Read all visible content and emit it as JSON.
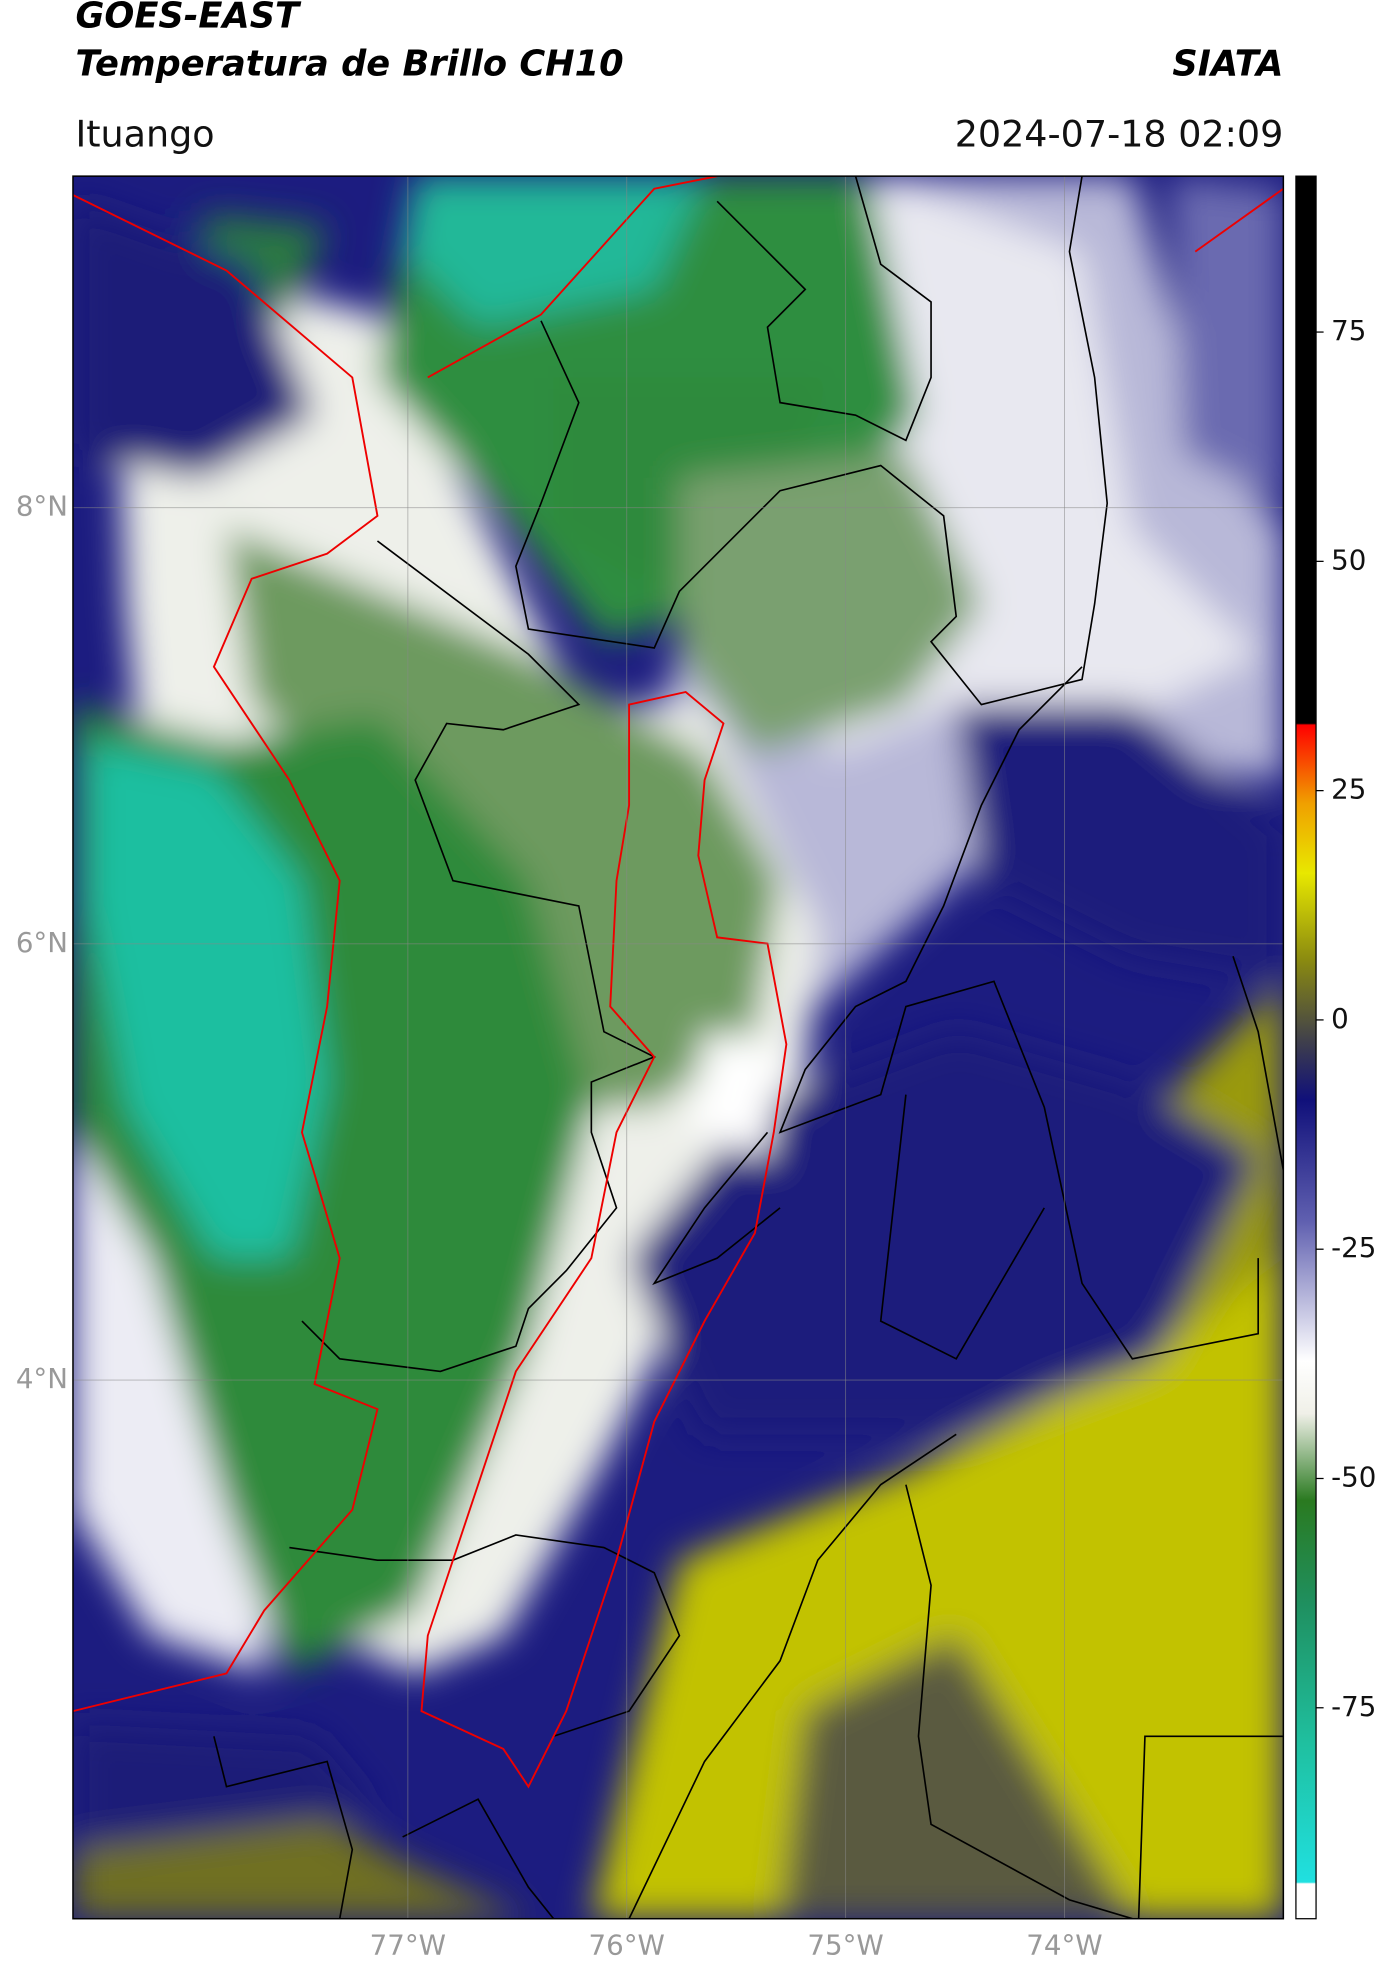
{
  "header": {
    "title_line1": "GOES-EAST",
    "title_line2": "Temperatura de Brillo CH10",
    "source": "SIATA",
    "location": "Ituango",
    "datetime": "2024-07-18 02:09"
  },
  "map": {
    "lat_lim": [
      1.53,
      9.52
    ],
    "lon_lim": [
      -78.53,
      -73.0
    ],
    "lat_ticks": [
      {
        "value": 8,
        "label": "8°N"
      },
      {
        "value": 6,
        "label": "6°N"
      },
      {
        "value": 4,
        "label": "4°N"
      }
    ],
    "lon_ticks": [
      {
        "value": -77,
        "label": "77°W"
      },
      {
        "value": -76,
        "label": "76°W"
      },
      {
        "value": -75,
        "label": "75°W"
      },
      {
        "value": -74,
        "label": "74°W"
      }
    ]
  },
  "colorbar": {
    "lim": [
      -98,
      92
    ],
    "ticks": [
      75,
      50,
      25,
      0,
      -25,
      -50,
      -75
    ]
  }
}
